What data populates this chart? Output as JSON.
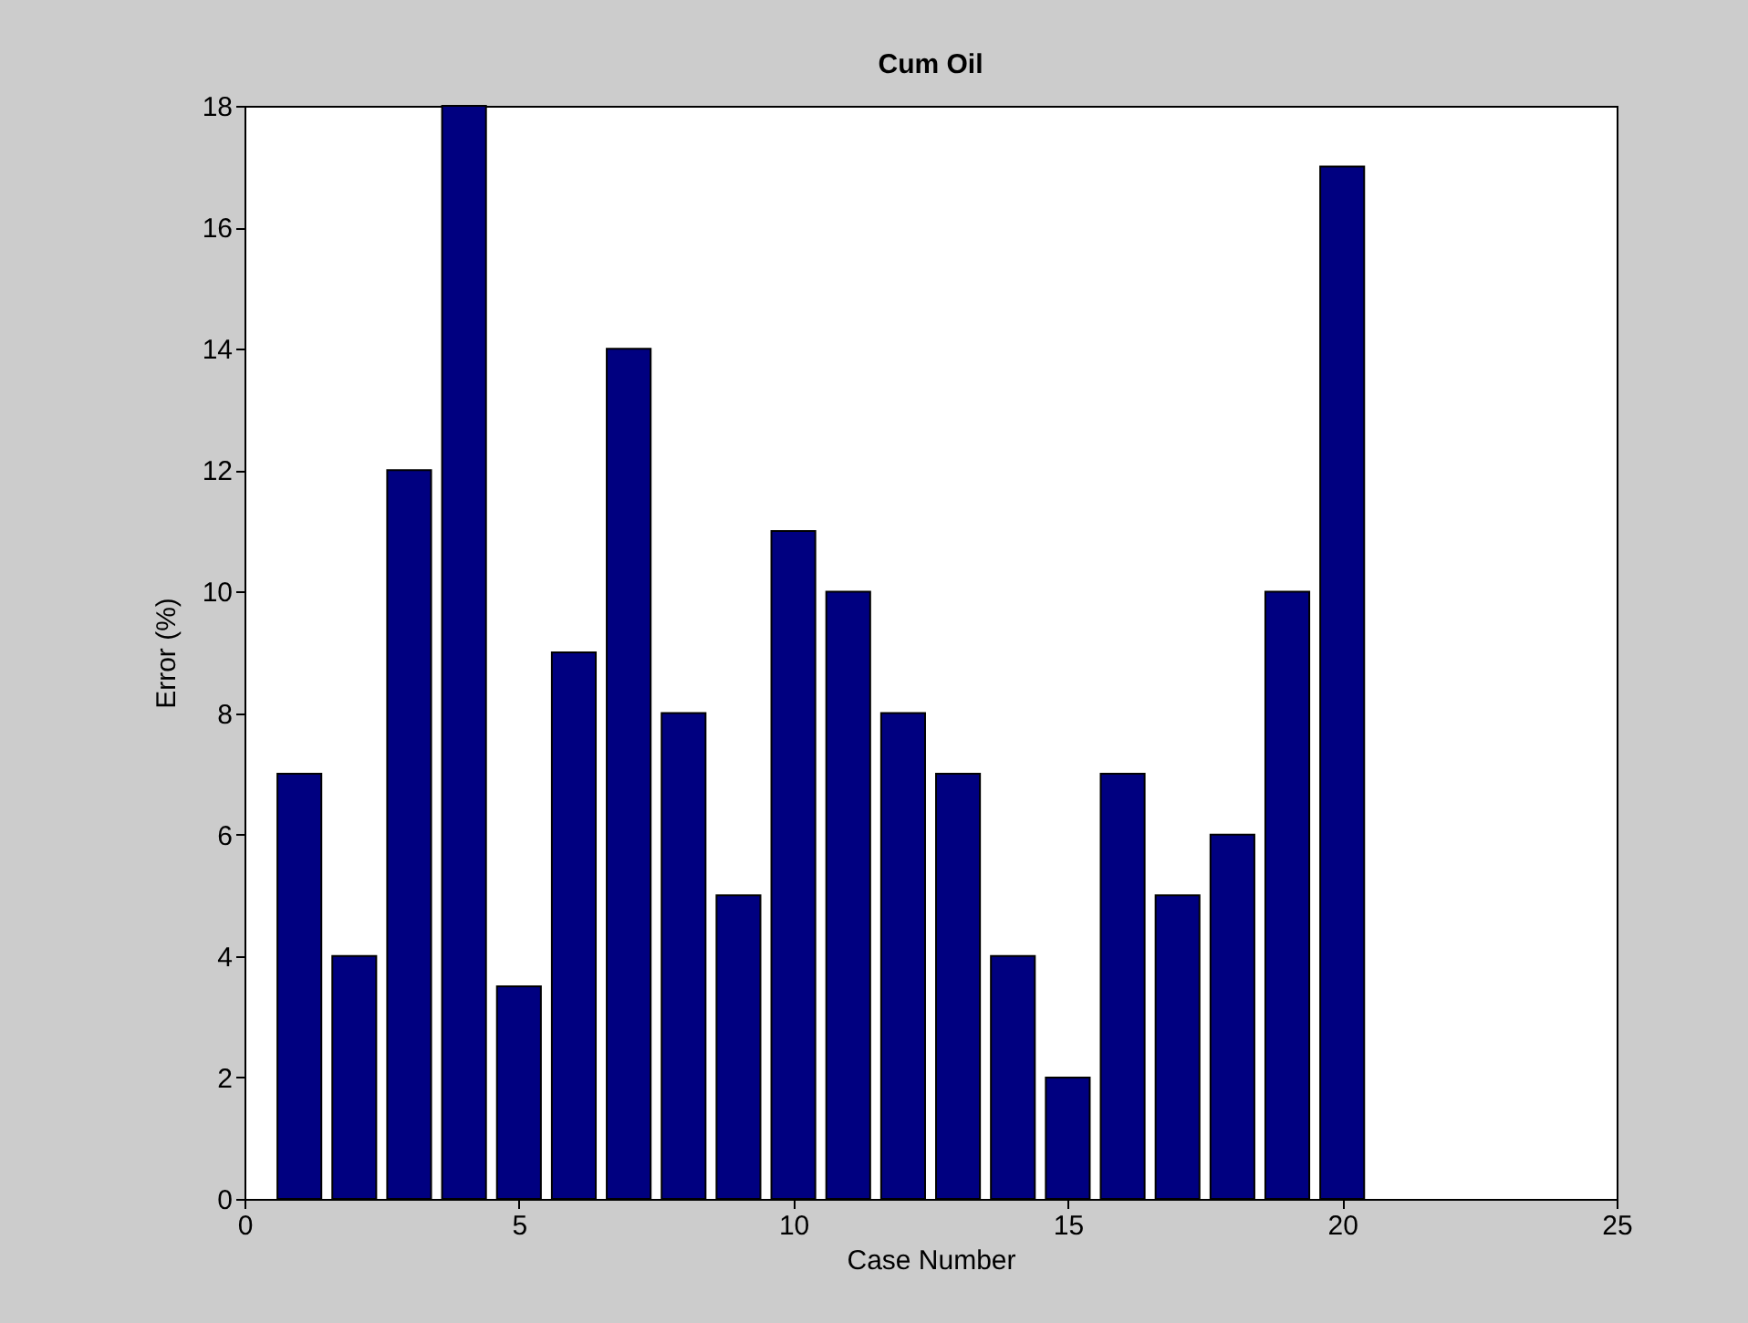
{
  "chart_data": {
    "type": "bar",
    "title": "Cum Oil",
    "xlabel": "Case Number",
    "ylabel": "Error (%)",
    "x": [
      1,
      2,
      3,
      4,
      5,
      6,
      7,
      8,
      9,
      10,
      11,
      12,
      13,
      14,
      15,
      16,
      17,
      18,
      19,
      20
    ],
    "values": [
      7,
      4,
      12,
      18,
      3.5,
      9,
      14,
      8,
      5,
      11,
      10,
      8,
      7,
      4,
      2,
      7,
      5,
      6,
      10,
      17
    ],
    "color": "#000080",
    "xlim": [
      0,
      25
    ],
    "xticks": [
      0,
      5,
      10,
      15,
      20,
      25
    ],
    "ylim": [
      0,
      18
    ],
    "yticks": [
      0,
      2,
      4,
      6,
      8,
      10,
      12,
      14,
      16,
      18
    ]
  }
}
